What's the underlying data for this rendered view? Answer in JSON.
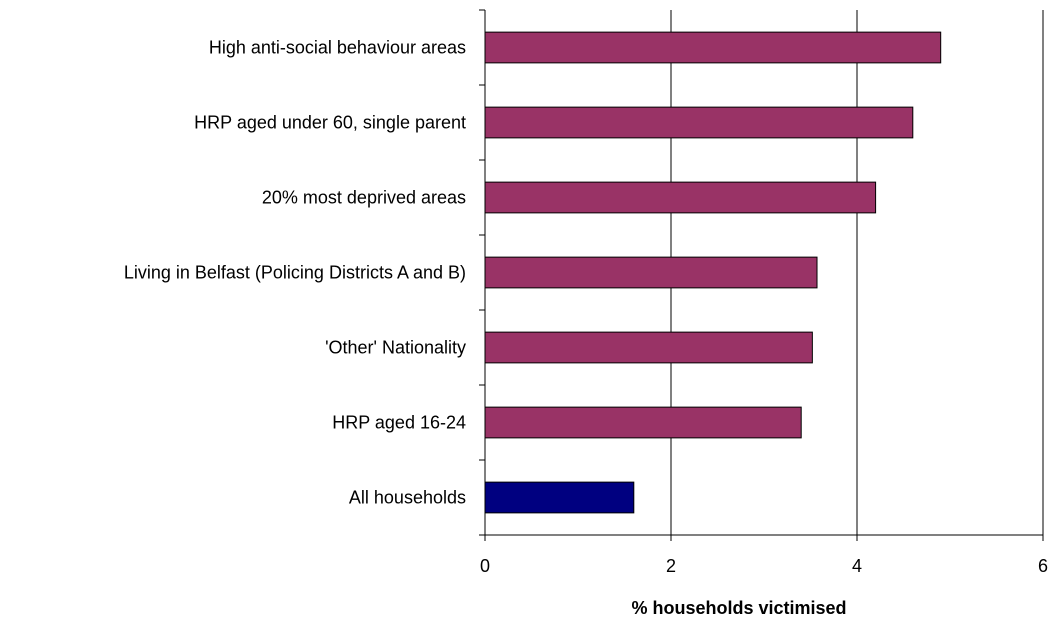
{
  "chart_data": {
    "type": "bar",
    "orientation": "horizontal",
    "categories": [
      "High anti-social behaviour areas",
      "HRP aged under 60, single parent",
      "20% most deprived areas",
      "Living in Belfast (Policing Districts A and B)",
      "'Other' Nationality",
      "HRP aged 16-24",
      "All households"
    ],
    "values": [
      4.9,
      4.6,
      4.2,
      3.57,
      3.52,
      3.4,
      1.6
    ],
    "bar_colors": [
      "#993366",
      "#993366",
      "#993366",
      "#993366",
      "#993366",
      "#993366",
      "#000080"
    ],
    "xlabel": "% households victimised",
    "ylabel": "",
    "xlim": [
      0,
      6
    ],
    "xticks": [
      0,
      2,
      4,
      6
    ],
    "xtick_labels": [
      "0",
      "2",
      "4",
      "6"
    ],
    "grid": "vertical",
    "legend": "none"
  }
}
